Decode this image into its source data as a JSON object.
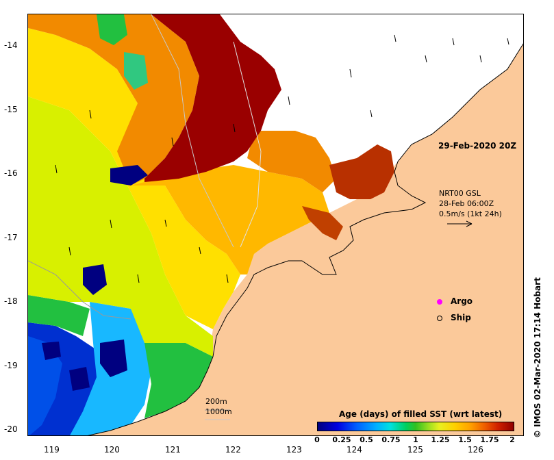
{
  "map": {
    "yaxis_ticks": [
      "-14",
      "-15",
      "-16",
      "-17",
      "-18",
      "-19",
      "-20"
    ],
    "xaxis_ticks": [
      "119",
      "120",
      "121",
      "122",
      "123",
      "124",
      "125",
      "126"
    ],
    "timestamp": "29-Feb-2020 20Z",
    "current_vector": {
      "line1": "NRT00 GSL",
      "line2": "28-Feb 06:00Z",
      "line3": "0.5m/s (1kt 24h)"
    },
    "legend": {
      "argo": "Argo",
      "ship": "Ship"
    },
    "depth_contours": {
      "c200": "200m",
      "c1000": "1000m"
    },
    "colorbar": {
      "title": "Age (days) of filled SST (wrt latest)",
      "ticks": [
        "0",
        "0.25",
        "0.5",
        "0.75",
        "1",
        "1.25",
        "1.5",
        "1.75",
        "2"
      ]
    },
    "credit": "© IMOS 02-Mar-2020 17:14 Hobart",
    "colors": {
      "land": "#fbc99a",
      "darkred": "#9a0000",
      "orange": "#f28a00",
      "yelloworange": "#ffb800",
      "yellow": "#ffe000",
      "yellowgreen": "#d8f000",
      "green": "#22c040",
      "cyan": "#18b8ff",
      "navy": "#000080"
    }
  }
}
